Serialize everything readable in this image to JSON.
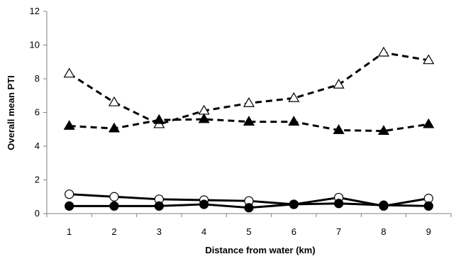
{
  "chart_data": {
    "type": "line",
    "title": "",
    "xlabel": "Distance from water (km)",
    "ylabel": "Overall mean PTI",
    "x": [
      1,
      2,
      3,
      4,
      5,
      6,
      7,
      8,
      9
    ],
    "xlim": [
      0.5,
      9.5
    ],
    "ylim": [
      0,
      12
    ],
    "yticks": [
      0,
      2,
      4,
      6,
      8,
      10,
      12
    ],
    "xticks": [
      1,
      2,
      3,
      4,
      5,
      6,
      7,
      8,
      9
    ],
    "grid": false,
    "legend": "none",
    "series": [
      {
        "values": [
          8.3,
          6.6,
          5.3,
          6.1,
          6.55,
          6.85,
          7.65,
          9.55,
          9.1
        ],
        "line_style": "dashed",
        "marker": "open-triangle",
        "color": "#000000"
      },
      {
        "values": [
          5.2,
          5.05,
          5.55,
          5.6,
          5.45,
          5.45,
          4.95,
          4.9,
          5.3
        ],
        "line_style": "dashed",
        "marker": "filled-triangle",
        "color": "#000000"
      },
      {
        "values": [
          1.15,
          1.0,
          0.85,
          0.8,
          0.75,
          0.55,
          0.95,
          0.45,
          0.9
        ],
        "line_style": "solid",
        "marker": "open-circle",
        "color": "#000000"
      },
      {
        "values": [
          0.45,
          0.45,
          0.45,
          0.55,
          0.35,
          0.55,
          0.6,
          0.5,
          0.45
        ],
        "line_style": "solid",
        "marker": "filled-circle",
        "color": "#000000"
      }
    ]
  }
}
